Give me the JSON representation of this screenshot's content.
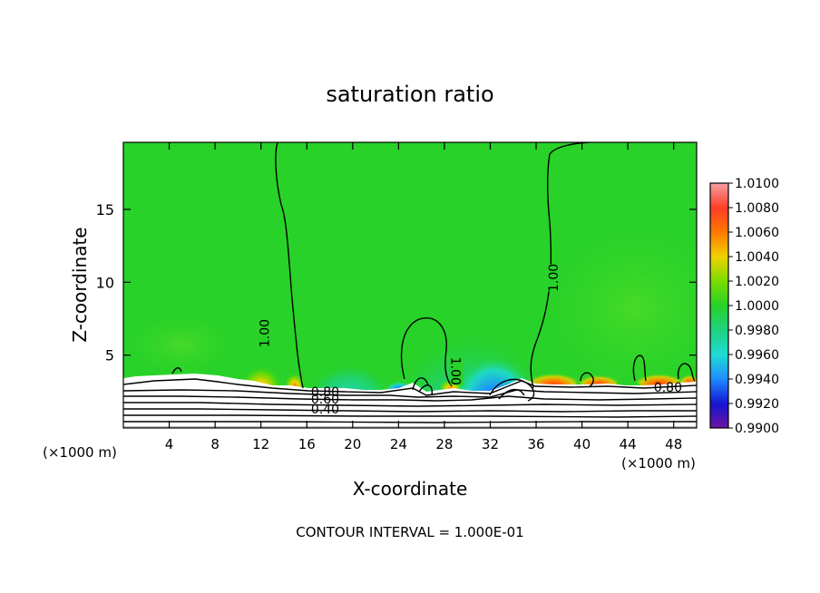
{
  "chart_data": {
    "type": "heatmap",
    "title": "saturation ratio",
    "xlabel": "X-coordinate",
    "ylabel": "Z-coordinate",
    "x_unit_left": "(×1000 m)",
    "x_unit_right": "(×1000 m)",
    "footer": "CONTOUR INTERVAL = 1.000E-01",
    "xlim": [
      0,
      50
    ],
    "ylim": [
      0,
      19.6
    ],
    "x_ticks": [
      "4",
      "8",
      "12",
      "16",
      "20",
      "24",
      "28",
      "32",
      "36",
      "40",
      "44",
      "48"
    ],
    "x_tick_values": [
      4,
      8,
      12,
      16,
      20,
      24,
      28,
      32,
      36,
      40,
      44,
      48
    ],
    "y_ticks": [
      "5",
      "10",
      "15"
    ],
    "y_tick_values": [
      5,
      10,
      15
    ],
    "colorbar": {
      "labels": [
        "1.0100",
        "1.0080",
        "1.0060",
        "1.0040",
        "1.0020",
        "1.0000",
        "0.9980",
        "0.9960",
        "0.9940",
        "0.9920",
        "0.9900"
      ],
      "colors": [
        "#f4a0a0",
        "#ff3c28",
        "#ff7800",
        "#f0d200",
        "#78dc00",
        "#28d228",
        "#1ed282",
        "#1edcd2",
        "#1e8cff",
        "#1414d2",
        "#6e14a0"
      ]
    },
    "contour_labels": [
      {
        "text": "1.00",
        "x": 12.3,
        "z": 6.5,
        "rotate": -90
      },
      {
        "text": "1.00",
        "x": 29.0,
        "z": 3.9,
        "rotate": 90
      },
      {
        "text": "1.00",
        "x": 37.5,
        "z": 10.3,
        "rotate": -90
      },
      {
        "text": "0.80",
        "x": 17.6,
        "z": 2.5,
        "rotate": 0
      },
      {
        "text": "0.60",
        "x": 17.6,
        "z": 2.0,
        "rotate": 0
      },
      {
        "text": "0.40",
        "x": 17.6,
        "z": 1.3,
        "rotate": 0
      },
      {
        "text": "0.80",
        "x": 47.5,
        "z": 2.8,
        "rotate": 0
      }
    ],
    "colors": {
      "background_field": "#28d228",
      "surface": "#ffffff",
      "contour": "#000000"
    }
  }
}
